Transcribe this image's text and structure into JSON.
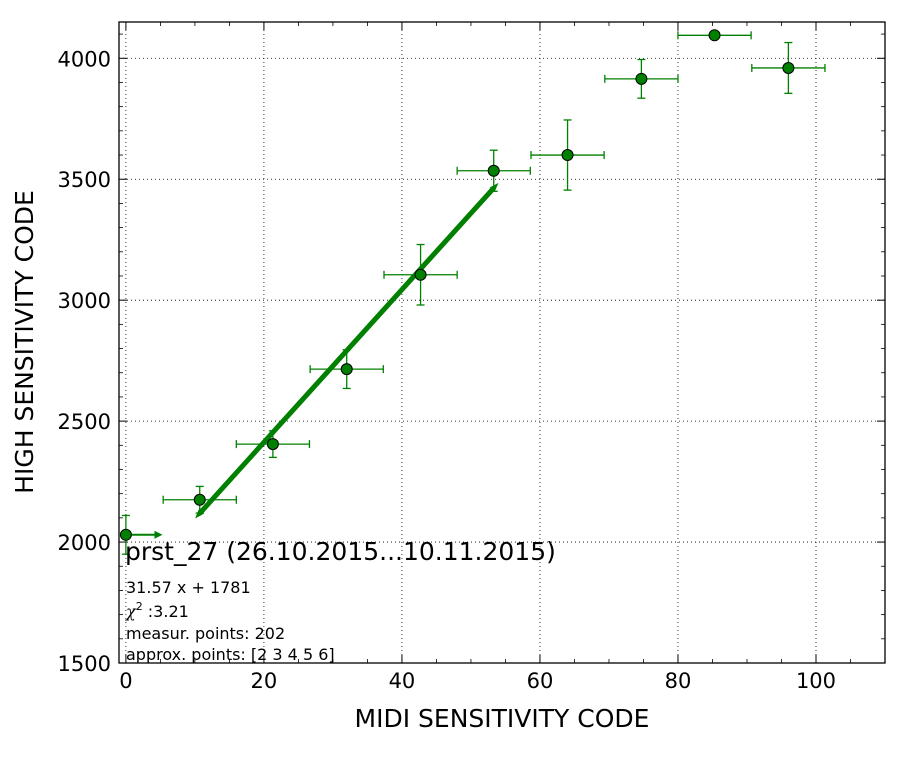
{
  "chart_data": {
    "type": "scatter",
    "xlabel": "MIDI SENSITIVITY CODE",
    "ylabel": "HIGH SENSITIVITY CODE",
    "xlim": [
      -1,
      110
    ],
    "ylim": [
      1500,
      4150
    ],
    "xticks": [
      0,
      20,
      40,
      60,
      80,
      100
    ],
    "yticks": [
      1500,
      2000,
      2500,
      3000,
      3500,
      4000
    ],
    "xtick_labels": [
      "0",
      "20",
      "40",
      "60",
      "80",
      "100"
    ],
    "ytick_labels": [
      "1500",
      "2000",
      "2500",
      "3000",
      "3500",
      "4000"
    ],
    "grid": true,
    "color": "#008000",
    "points": [
      {
        "x": 0.0,
        "y": 2030,
        "xerr_lo": 0,
        "xerr_hi": 5.3,
        "yerr": 80,
        "x_arrow": true
      },
      {
        "x": 10.7,
        "y": 2175,
        "xerr_lo": 5.3,
        "xerr_hi": 5.3,
        "yerr": 55
      },
      {
        "x": 21.3,
        "y": 2405,
        "xerr_lo": 5.3,
        "xerr_hi": 5.3,
        "yerr": 55
      },
      {
        "x": 32.0,
        "y": 2715,
        "xerr_lo": 5.3,
        "xerr_hi": 5.3,
        "yerr": 80
      },
      {
        "x": 42.7,
        "y": 3105,
        "xerr_lo": 5.3,
        "xerr_hi": 5.3,
        "yerr": 125
      },
      {
        "x": 53.3,
        "y": 3535,
        "xerr_lo": 5.3,
        "xerr_hi": 5.3,
        "yerr": 85
      },
      {
        "x": 64.0,
        "y": 3600,
        "xerr_lo": 5.3,
        "xerr_hi": 5.3,
        "yerr": 145
      },
      {
        "x": 74.7,
        "y": 3915,
        "xerr_lo": 5.3,
        "xerr_hi": 5.3,
        "yerr": 80
      },
      {
        "x": 85.3,
        "y": 4095,
        "xerr_lo": 5.3,
        "xerr_hi": 5.3,
        "yerr": 0
      },
      {
        "x": 96.0,
        "y": 3960,
        "xerr_lo": 5.3,
        "xerr_hi": 5.3,
        "yerr": 105
      }
    ],
    "fit": {
      "slope": 31.57,
      "intercept": 1781,
      "x_range": [
        10.7,
        53.3
      ]
    },
    "annotations": {
      "title": "prst_27 (26.10.2015...10.11.2015)",
      "equation": "31.57 x + 1781",
      "chi2_symbol": "χ",
      "chi2_sup": "2",
      "chi2_value": " :3.21",
      "measur": "measur. points: 202",
      "approx": "approx. points: [2 3 4 5 6]"
    }
  }
}
